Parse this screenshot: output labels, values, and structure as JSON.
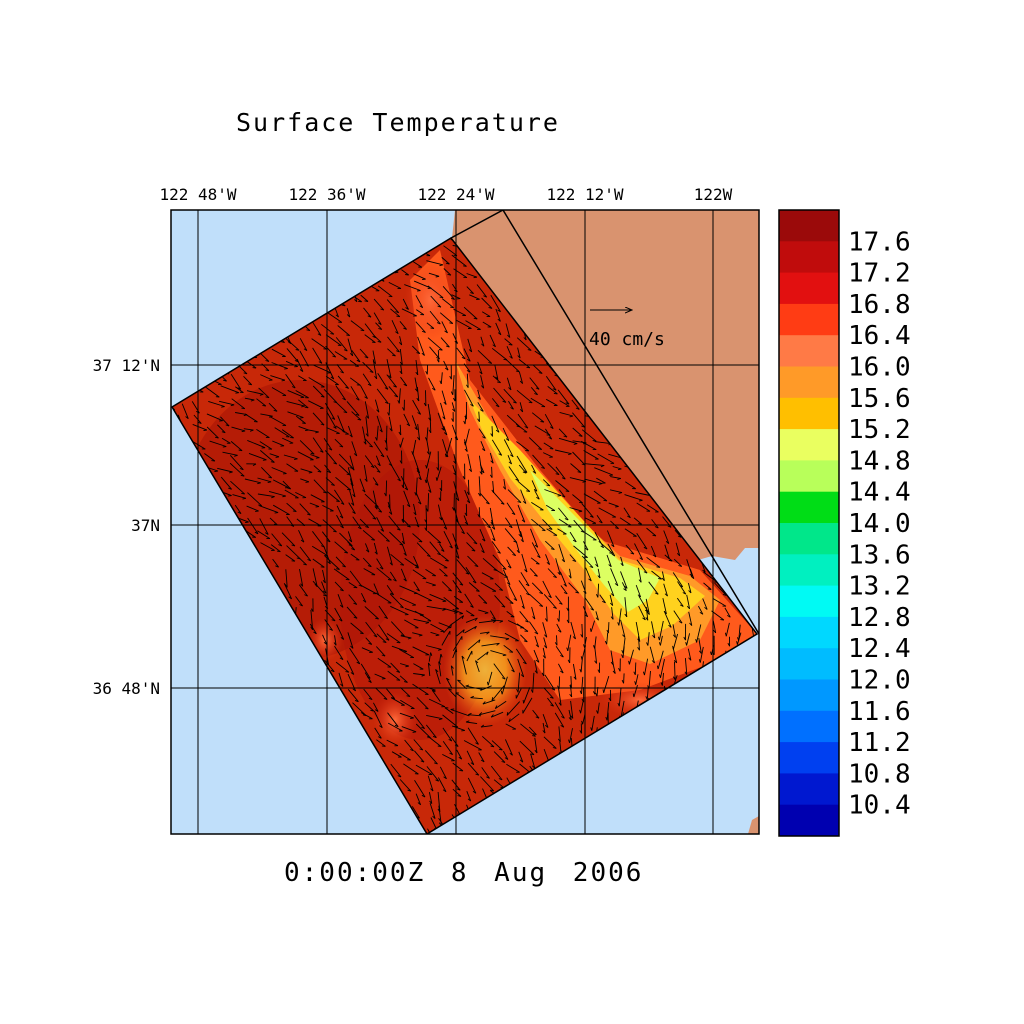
{
  "title": "Surface Temperature",
  "datetime": "0:00:00Z   8 Aug 2006",
  "lon_labels": [
    "122 48'W",
    "122 36'W",
    "122 24'W",
    "122 12'W",
    "122W"
  ],
  "lat_labels": [
    "37 12'N",
    "37N",
    "36 48'N"
  ],
  "reference_vector": {
    "label": "40 cm/s"
  },
  "colorbar": {
    "labels": [
      "17.6",
      "17.2",
      "16.8",
      "16.4",
      "16.0",
      "15.6",
      "15.2",
      "14.8",
      "14.4",
      "14.0",
      "13.6",
      "13.2",
      "12.8",
      "12.4",
      "12.0",
      "11.6",
      "11.2",
      "10.8",
      "10.4"
    ],
    "colors": [
      "#9b0a0a",
      "#c00c0c",
      "#e21010",
      "#ff3c14",
      "#ff7a46",
      "#ff9a28",
      "#ffbf00",
      "#eaff60",
      "#b8ff5a",
      "#00dd16",
      "#00e78a",
      "#00f0c0",
      "#00faf4",
      "#00d8ff",
      "#00bcff",
      "#0098ff",
      "#0070ff",
      "#0040f0",
      "#0018d0",
      "#0000b0"
    ]
  },
  "colors": {
    "ocean": "#c0dffa",
    "land": "#d9936f",
    "warm": "#c82808"
  }
}
